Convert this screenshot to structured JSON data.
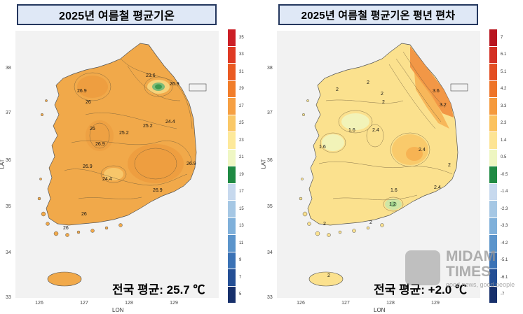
{
  "left": {
    "title": "2025년 여름철 평균기온",
    "average_label": "전국 평균: 25.7 ℃",
    "legend_labels": [
      "35",
      "33",
      "31",
      "29",
      "27",
      "25",
      "23",
      "21",
      "19",
      "17",
      "15",
      "13",
      "11",
      "9",
      "7",
      "5"
    ],
    "legend_colors": [
      "#cc1f26",
      "#df3a24",
      "#ea5a22",
      "#f17d2a",
      "#f6a043",
      "#fac867",
      "#fde99a",
      "#eff7c4",
      "#1f8a43",
      "#c7d9ee",
      "#a5c7e4",
      "#7fb0da",
      "#5b94cb",
      "#3b72b5",
      "#244f95",
      "#17306b"
    ],
    "contour_labels": [
      "26.9",
      "26",
      "23.6",
      "26.9",
      "24.4",
      "25.2",
      "26",
      "26.9",
      "25.2",
      "26.9",
      "24.4",
      "26.9",
      "26.9",
      "26",
      "26"
    ]
  },
  "right": {
    "title": "2025년 여름철 평균기온 평년 편차",
    "average_label": "전국 평균: +2.0 ℃",
    "legend_labels": [
      "7",
      "6.1",
      "5.1",
      "4.2",
      "3.3",
      "2.3",
      "1.4",
      "0.5",
      "-0.5",
      "-1.4",
      "-2.3",
      "-3.3",
      "-4.2",
      "-5.1",
      "-6.1",
      "-7"
    ],
    "legend_colors": [
      "#b8151f",
      "#d33024",
      "#e34e22",
      "#ee7428",
      "#f59a3d",
      "#fbc25e",
      "#fde494",
      "#eef6c1",
      "#1f8a43",
      "#c7d9ee",
      "#a5c7e4",
      "#7fb0da",
      "#5b94cb",
      "#3b72b5",
      "#244f95",
      "#17306b"
    ],
    "contour_labels": [
      "2",
      "2",
      "2",
      "3.6",
      "3.2",
      "2",
      "1.6",
      "2.4",
      "1.6",
      "2.4",
      "2.4",
      "2",
      "1.6",
      "1.2",
      "2",
      "2",
      "2"
    ]
  },
  "axes": {
    "lat_ticks": [
      "38",
      "37",
      "36",
      "35",
      "34",
      "33"
    ],
    "lon_ticks": [
      "126",
      "127",
      "128",
      "129"
    ],
    "xlabel": "LON",
    "ylabel": "LAT"
  },
  "watermark": {
    "name_line1": "MIDAM",
    "name_line2": "TIMES",
    "tagline": "good news, good people"
  }
}
